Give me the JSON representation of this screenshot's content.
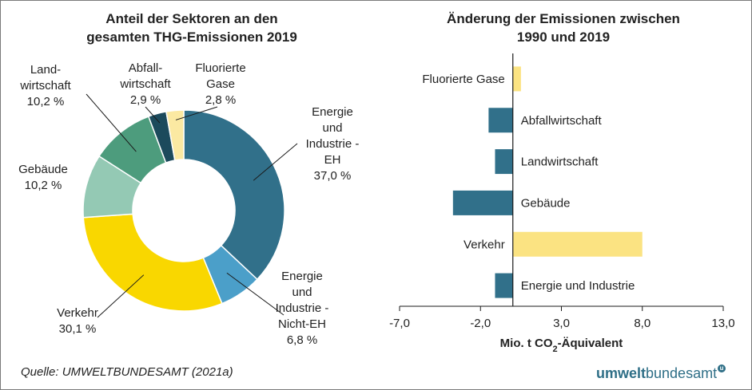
{
  "chart_data": [
    {
      "type": "pie",
      "variant": "donut",
      "title_line1": "Anteil der Sektoren an den",
      "title_line2": "gesamten THG-Emissionen 2019",
      "slices": [
        {
          "name": "Energie und Industrie - EH",
          "label_lines": [
            "Energie",
            "und",
            "Industrie -",
            "EH"
          ],
          "value": 37.0,
          "value_label": "37,0 %",
          "color": "#31708a"
        },
        {
          "name": "Energie und Industrie - Nicht-EH",
          "label_lines": [
            "Energie",
            "und",
            "Industrie -",
            "Nicht-EH"
          ],
          "value": 6.8,
          "value_label": "6,8 %",
          "color": "#4b9fc9"
        },
        {
          "name": "Verkehr",
          "label_lines": [
            "Verkehr"
          ],
          "value": 30.1,
          "value_label": "30,1 %",
          "color": "#f9d700"
        },
        {
          "name": "Gebäude",
          "label_lines": [
            "Gebäude"
          ],
          "value": 10.2,
          "value_label": "10,2 %",
          "color": "#94c9b4"
        },
        {
          "name": "Landwirtschaft",
          "label_lines": [
            "Land-",
            "wirtschaft"
          ],
          "value": 10.2,
          "value_label": "10,2 %",
          "color": "#4d9c7d"
        },
        {
          "name": "Abfallwirtschaft",
          "label_lines": [
            "Abfall-",
            "wirtschaft"
          ],
          "value": 2.9,
          "value_label": "2,9 %",
          "color": "#1c4a5c"
        },
        {
          "name": "Fluorierte Gase",
          "label_lines": [
            "Fluorierte",
            "Gase"
          ],
          "value": 2.8,
          "value_label": "2,8 %",
          "color": "#fbe9a2"
        }
      ]
    },
    {
      "type": "bar",
      "orientation": "horizontal",
      "title_line1": "Änderung der Emissionen zwischen",
      "title_line2": "1990 und 2019",
      "categories": [
        "Fluorierte Gase",
        "Abfallwirtschaft",
        "Landwirtschaft",
        "Gebäude",
        "Verkehr",
        "Energie und Industrie"
      ],
      "values": [
        0.5,
        -1.5,
        -1.1,
        -3.7,
        8.0,
        -1.1
      ],
      "colors": [
        "#fbe382",
        "#31708a",
        "#31708a",
        "#31708a",
        "#fbe382",
        "#31708a"
      ],
      "xlim": [
        -7.0,
        13.0
      ],
      "xticks": [
        "-7,0",
        "-2,0",
        "3,0",
        "8,0",
        "13,0"
      ],
      "xtick_values": [
        -7,
        -2,
        3,
        8,
        13
      ],
      "xlabel_prefix": "Mio. t CO",
      "xlabel_sub": "2",
      "xlabel_suffix": "-Äquivalent"
    }
  ],
  "footer": {
    "source": "Quelle: UMWELTBUNDESAMT (2021a)",
    "logo_part1": "umwelt",
    "logo_part2": "bundesamt",
    "logo_mark": "u"
  }
}
